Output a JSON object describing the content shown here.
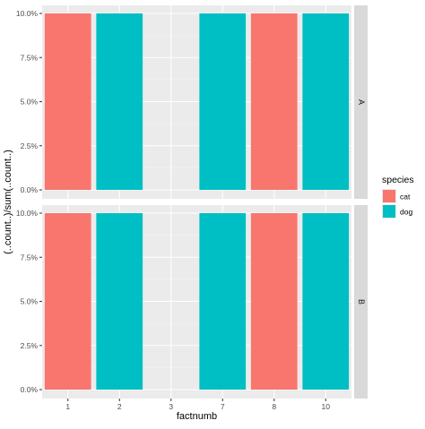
{
  "chart_data": {
    "type": "bar",
    "facet_rows": [
      "A",
      "B"
    ],
    "categories": [
      "1",
      "2",
      "3",
      "7",
      "8",
      "10"
    ],
    "xlabel": "factnumb",
    "ylabel": "(..count..)/sum(..count..)",
    "ylim": [
      0,
      0.1
    ],
    "y_ticks": [
      "0.0%",
      "2.5%",
      "5.0%",
      "7.5%",
      "10.0%"
    ],
    "y_tick_values": [
      0,
      0.025,
      0.05,
      0.075,
      0.1
    ],
    "grid": true,
    "legend": {
      "title": "species",
      "placement": "right",
      "entries": [
        {
          "name": "cat",
          "color": "#F8766D"
        },
        {
          "name": "dog",
          "color": "#00BFC4"
        }
      ]
    },
    "panels": [
      {
        "facet": "A",
        "bars": [
          {
            "category": "1",
            "species": "cat",
            "value": 0.1
          },
          {
            "category": "2",
            "species": "dog",
            "value": 0.1
          },
          {
            "category": "7",
            "species": "dog",
            "value": 0.1
          },
          {
            "category": "8",
            "species": "cat",
            "value": 0.1
          },
          {
            "category": "10",
            "species": "dog",
            "value": 0.1
          }
        ]
      },
      {
        "facet": "B",
        "bars": [
          {
            "category": "1",
            "species": "cat",
            "value": 0.1
          },
          {
            "category": "2",
            "species": "dog",
            "value": 0.1
          },
          {
            "category": "7",
            "species": "dog",
            "value": 0.1
          },
          {
            "category": "8",
            "species": "cat",
            "value": 0.1
          },
          {
            "category": "10",
            "species": "dog",
            "value": 0.1
          }
        ]
      }
    ]
  },
  "colors": {
    "panel_bg": "#EBEBEB",
    "strip_bg": "#D9D9D9",
    "grid_major": "#FFFFFF",
    "tick_text": "#4D4D4D"
  }
}
